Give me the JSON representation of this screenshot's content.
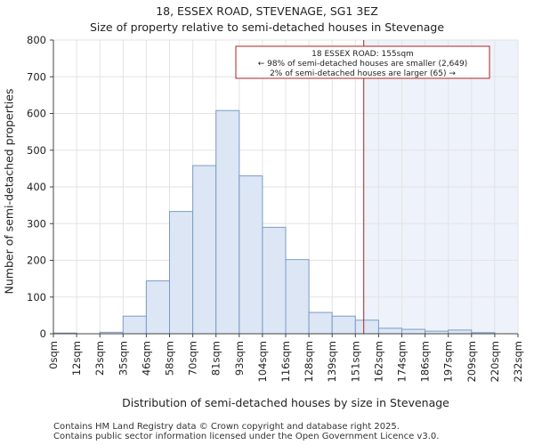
{
  "title_line1": "18, ESSEX ROAD, STEVENAGE, SG1 3EZ",
  "title_line2": "Size of property relative to semi-detached houses in Stevenage",
  "footer_line1": "Contains HM Land Registry data © Crown copyright and database right 2025.",
  "footer_line2": "Contains public sector information licensed under the Open Government Licence v3.0.",
  "colors": {
    "bar_fill": "#dce6f5",
    "bar_stroke": "#7a9cc6",
    "highlight_fill": "#eef2fa",
    "marker_line": "#b22222",
    "annotation_border": "#b22222"
  },
  "chart_data": {
    "type": "bar",
    "title": "Size of property relative to semi-detached houses in Stevenage",
    "xlabel": "Distribution of semi-detached houses by size in Stevenage",
    "ylabel": "Number of semi-detached properties",
    "bin_edges": [
      "0sqm",
      "12sqm",
      "23sqm",
      "35sqm",
      "46sqm",
      "58sqm",
      "70sqm",
      "81sqm",
      "93sqm",
      "104sqm",
      "116sqm",
      "128sqm",
      "139sqm",
      "151sqm",
      "162sqm",
      "174sqm",
      "186sqm",
      "197sqm",
      "209sqm",
      "220sqm",
      "232sqm"
    ],
    "values": [
      2,
      0,
      4,
      48,
      144,
      333,
      458,
      608,
      430,
      290,
      202,
      58,
      48,
      37,
      15,
      12,
      7,
      10,
      3,
      0
    ],
    "ylim": [
      0,
      800
    ],
    "yticks": [
      0,
      100,
      200,
      300,
      400,
      500,
      600,
      700,
      800
    ],
    "marker_bin_position": 13.36,
    "annotation": {
      "line1": "18 ESSEX ROAD: 155sqm",
      "line2": "← 98% of semi-detached houses are smaller (2,649)",
      "line3": "2% of semi-detached houses are larger (65) →"
    }
  }
}
